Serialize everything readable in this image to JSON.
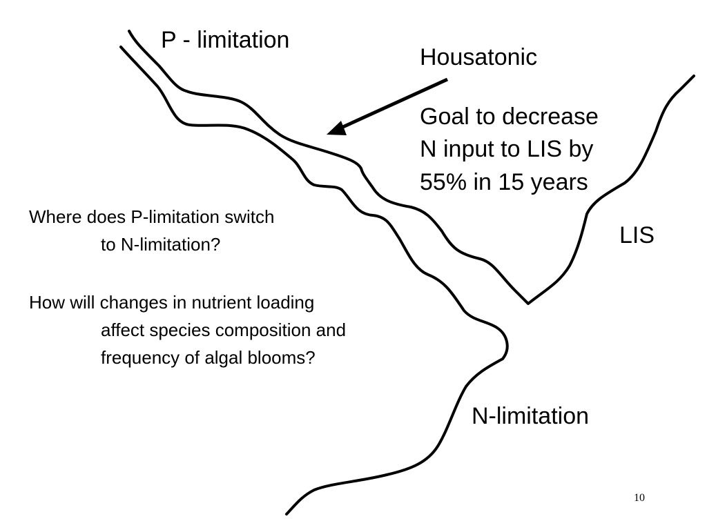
{
  "labels": {
    "p_limitation": "P - limitation",
    "housatonic": "Housatonic",
    "goal": [
      "Goal to decrease",
      "N input to LIS by",
      "55% in 15 years"
    ],
    "lis": "LIS",
    "n_limitation": "N-limitation"
  },
  "questions": [
    {
      "lines": [
        "Where does P-limitation switch",
        "to N-limitation?"
      ]
    },
    {
      "lines": [
        "How will changes in nutrient loading",
        "affect species composition and",
        "frequency of algal blooms?"
      ]
    }
  ],
  "page_number": "10"
}
